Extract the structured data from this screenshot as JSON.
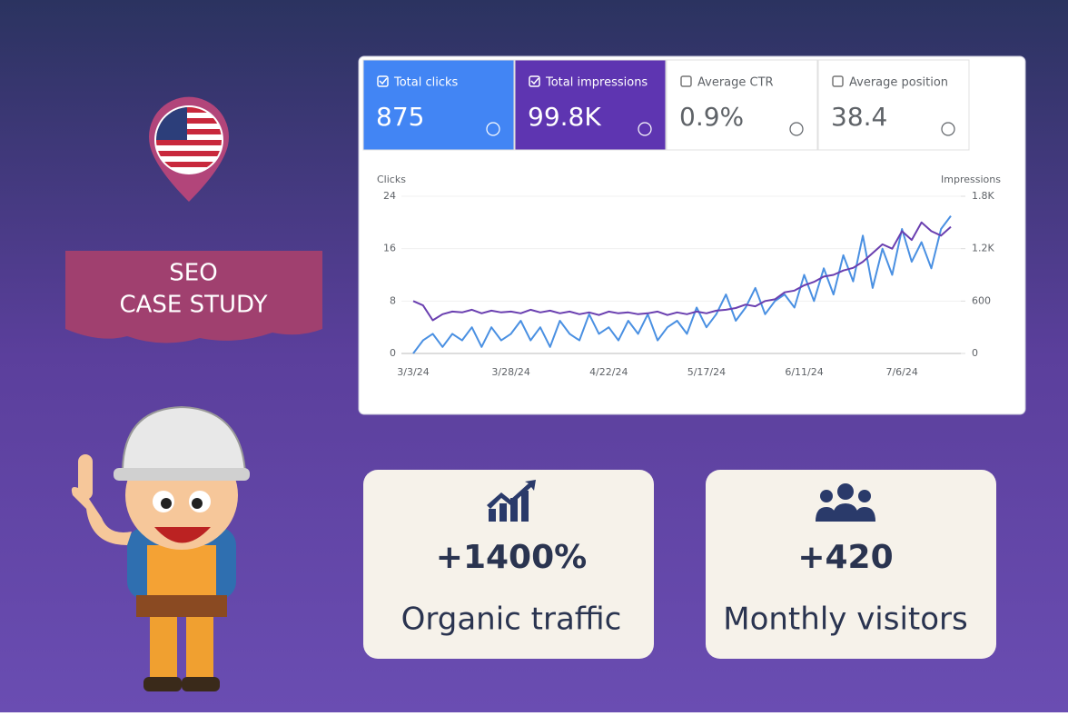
{
  "badge": {
    "line1": "SEO",
    "line2": "CASE STUDY"
  },
  "metrics": [
    {
      "label": "Total clicks",
      "value": "875"
    },
    {
      "label": "Total impressions",
      "value": "99.8K"
    },
    {
      "label": "Average CTR",
      "value": "0.9%"
    },
    {
      "label": "Average position",
      "value": "38.4"
    }
  ],
  "chart_data": {
    "type": "line",
    "categories": [
      "3/3/24",
      null,
      null,
      null,
      null,
      null,
      null,
      null,
      null,
      null,
      "3/28/24",
      null,
      null,
      null,
      null,
      null,
      null,
      null,
      null,
      null,
      "4/22/24",
      null,
      null,
      null,
      null,
      null,
      null,
      null,
      null,
      null,
      "5/17/24",
      null,
      null,
      null,
      null,
      null,
      null,
      null,
      null,
      null,
      "6/11/24",
      null,
      null,
      null,
      null,
      null,
      null,
      null,
      null,
      null,
      "7/6/24",
      null,
      null,
      null,
      null,
      null
    ],
    "series": [
      {
        "name": "Clicks",
        "color": "#4a90e2",
        "values": [
          0,
          2,
          3,
          1,
          3,
          2,
          4,
          1,
          4,
          2,
          3,
          5,
          2,
          4,
          1,
          5,
          3,
          2,
          6,
          3,
          4,
          2,
          5,
          3,
          6,
          2,
          4,
          5,
          3,
          7,
          4,
          6,
          9,
          5,
          7,
          10,
          6,
          8,
          9,
          7,
          12,
          8,
          13,
          9,
          15,
          11,
          18,
          10,
          16,
          12,
          19,
          14,
          17,
          13,
          19,
          21
        ]
      },
      {
        "name": "Impressions",
        "color": "#6a3fb0",
        "axis": "y2",
        "values": [
          600,
          550,
          380,
          450,
          480,
          470,
          500,
          460,
          490,
          470,
          480,
          460,
          500,
          470,
          490,
          460,
          480,
          450,
          470,
          440,
          480,
          460,
          470,
          450,
          460,
          480,
          440,
          470,
          450,
          480,
          460,
          490,
          500,
          520,
          560,
          540,
          600,
          620,
          700,
          720,
          780,
          820,
          880,
          900,
          950,
          980,
          1050,
          1150,
          1250,
          1200,
          1400,
          1300,
          1500,
          1400,
          1350,
          1450
        ]
      }
    ],
    "ylim": [
      0,
      24
    ],
    "yticks": [
      0,
      8,
      16,
      24
    ],
    "y2lim": [
      0,
      1800
    ],
    "y2ticks": [
      0,
      600,
      {
        "value": 1200,
        "label": "1.2K"
      },
      {
        "value": 1800,
        "label": "1.8K"
      }
    ],
    "grid": true
  },
  "stats": [
    {
      "value": "+1400%",
      "label": "Organic traffic"
    },
    {
      "value": "+420",
      "label": "Monthly visitors"
    }
  ]
}
